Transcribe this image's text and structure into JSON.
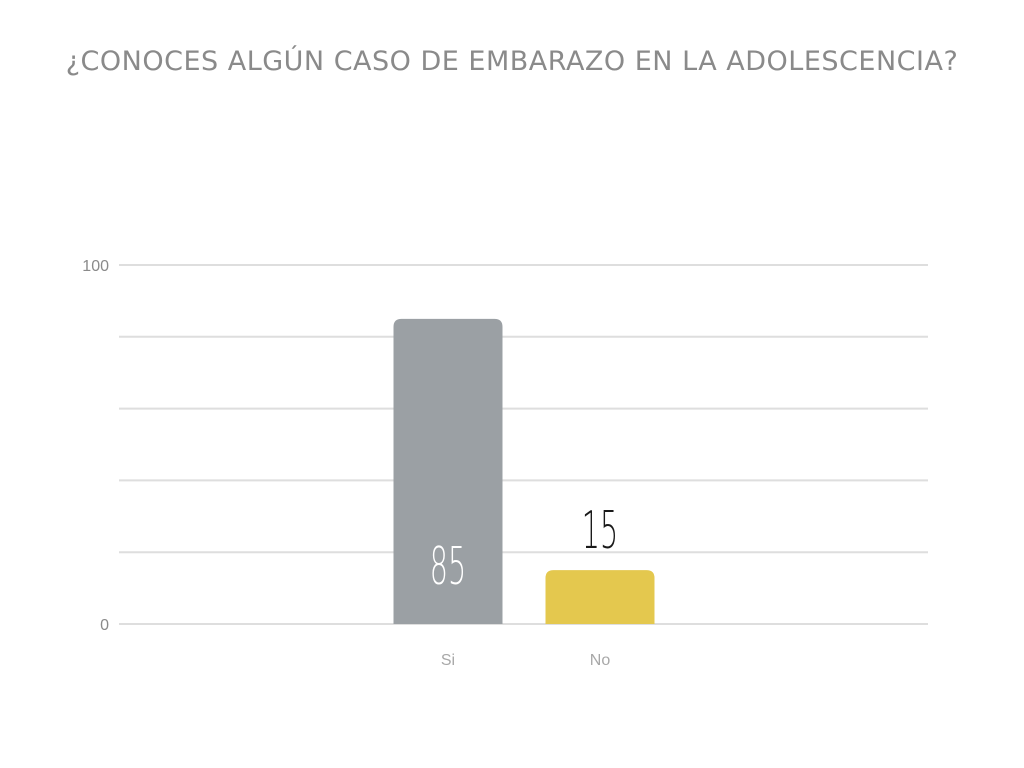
{
  "chart_data": {
    "type": "bar",
    "title": "¿CONOCES ALGÚN CASO DE EMBARAZO EN LA ADOLESCENCIA?",
    "xlabel": "",
    "ylabel": "",
    "categories": [
      "Si",
      "No"
    ],
    "values": [
      85,
      15
    ],
    "ylim": [
      0,
      100
    ],
    "yticks": [
      0,
      100
    ],
    "gridlines": [
      0,
      20,
      40,
      60,
      80,
      100
    ],
    "grid": true,
    "legend": "none",
    "colors": [
      "#9ba0a4",
      "#e4c84e"
    ],
    "data_label_colors": [
      "#ffffff",
      "#1a1a1a"
    ],
    "data_label_position": [
      "inside",
      "outside"
    ]
  }
}
